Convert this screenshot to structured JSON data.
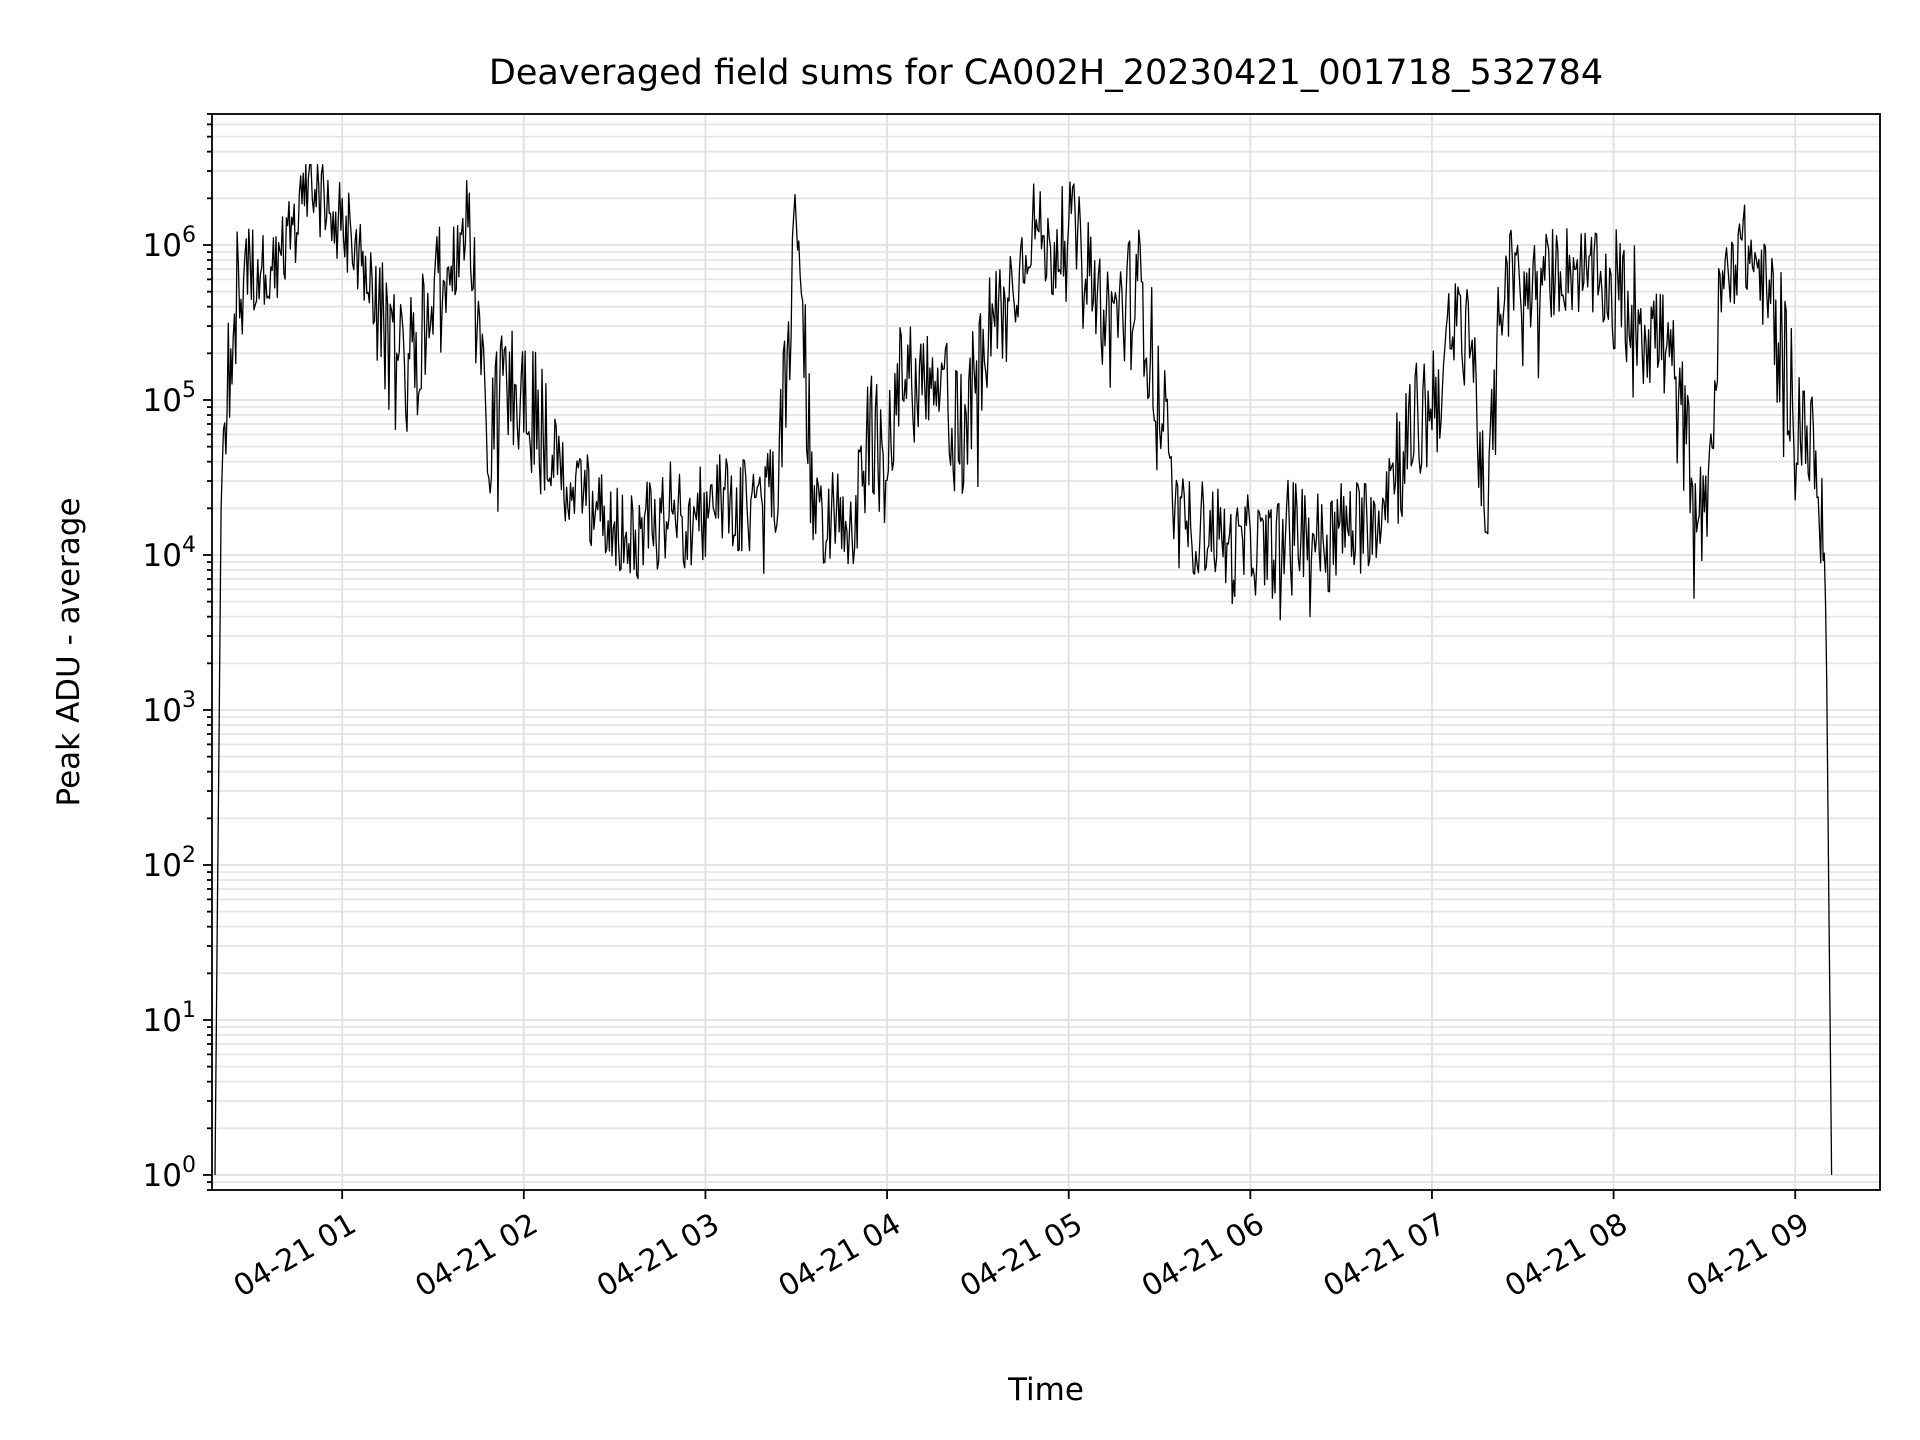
{
  "chart_data": {
    "type": "line",
    "title": "Deaveraged field sums for CA002H_20230421_001718_532784",
    "xlabel": "Time",
    "ylabel": "Peak ADU - average",
    "yscale": "log",
    "ylim": [
      0.8,
      7000000
    ],
    "xlim": [
      "2023-04-21 00:17",
      "2023-04-21 09:28"
    ],
    "grid": "major and minor, light gray",
    "x_ticks": [
      "04-21 01",
      "04-21 02",
      "04-21 03",
      "04-21 04",
      "04-21 05",
      "04-21 06",
      "04-21 07",
      "04-21 08",
      "04-21 09"
    ],
    "y_ticks": [
      {
        "base": "10",
        "exp": "0"
      },
      {
        "base": "10",
        "exp": "1"
      },
      {
        "base": "10",
        "exp": "2"
      },
      {
        "base": "10",
        "exp": "3"
      },
      {
        "base": "10",
        "exp": "4"
      },
      {
        "base": "10",
        "exp": "5"
      },
      {
        "base": "10",
        "exp": "6"
      }
    ],
    "series": [
      {
        "color": "#000000",
        "x": [
          "2023-04-21 00:18",
          "2023-04-21 00:20",
          "2023-04-21 00:24",
          "2023-04-21 00:30",
          "2023-04-21 00:36",
          "2023-04-21 00:42",
          "2023-04-21 00:48",
          "2023-04-21 00:54",
          "2023-04-21 01:00",
          "2023-04-21 01:06",
          "2023-04-21 01:12",
          "2023-04-21 01:18",
          "2023-04-21 01:24",
          "2023-04-21 01:30",
          "2023-04-21 01:36",
          "2023-04-21 01:42",
          "2023-04-21 01:48",
          "2023-04-21 01:54",
          "2023-04-21 02:00",
          "2023-04-21 02:06",
          "2023-04-21 02:12",
          "2023-04-21 02:18",
          "2023-04-21 02:24",
          "2023-04-21 02:30",
          "2023-04-21 02:36",
          "2023-04-21 02:42",
          "2023-04-21 02:48",
          "2023-04-21 02:54",
          "2023-04-21 03:00",
          "2023-04-21 03:06",
          "2023-04-21 03:12",
          "2023-04-21 03:18",
          "2023-04-21 03:24",
          "2023-04-21 03:30",
          "2023-04-21 03:36",
          "2023-04-21 03:42",
          "2023-04-21 03:48",
          "2023-04-21 03:54",
          "2023-04-21 04:00",
          "2023-04-21 04:06",
          "2023-04-21 04:12",
          "2023-04-21 04:18",
          "2023-04-21 04:24",
          "2023-04-21 04:30",
          "2023-04-21 04:36",
          "2023-04-21 04:42",
          "2023-04-21 04:48",
          "2023-04-21 04:54",
          "2023-04-21 05:00",
          "2023-04-21 05:06",
          "2023-04-21 05:12",
          "2023-04-21 05:18",
          "2023-04-21 05:24",
          "2023-04-21 05:30",
          "2023-04-21 05:36",
          "2023-04-21 05:42",
          "2023-04-21 05:48",
          "2023-04-21 05:54",
          "2023-04-21 06:00",
          "2023-04-21 06:06",
          "2023-04-21 06:12",
          "2023-04-21 06:18",
          "2023-04-21 06:24",
          "2023-04-21 06:30",
          "2023-04-21 06:36",
          "2023-04-21 06:42",
          "2023-04-21 06:48",
          "2023-04-21 06:54",
          "2023-04-21 07:00",
          "2023-04-21 07:06",
          "2023-04-21 07:12",
          "2023-04-21 07:18",
          "2023-04-21 07:24",
          "2023-04-21 07:30",
          "2023-04-21 07:36",
          "2023-04-21 07:42",
          "2023-04-21 07:48",
          "2023-04-21 07:54",
          "2023-04-21 08:00",
          "2023-04-21 08:06",
          "2023-04-21 08:12",
          "2023-04-21 08:18",
          "2023-04-21 08:24",
          "2023-04-21 08:30",
          "2023-04-21 08:36",
          "2023-04-21 08:42",
          "2023-04-21 08:48",
          "2023-04-21 08:54",
          "2023-04-21 09:00",
          "2023-04-21 09:06",
          "2023-04-21 09:10",
          "2023-04-21 09:12"
        ],
        "y": [
          1,
          20000,
          400000,
          700000,
          600000,
          1000000,
          2500000,
          1800000,
          1500000,
          800000,
          400000,
          150000,
          200000,
          400000,
          600000,
          1500000,
          60000,
          150000,
          120000,
          60000,
          30000,
          25000,
          20000,
          15000,
          12000,
          15000,
          20000,
          15000,
          20000,
          25000,
          20000,
          25000,
          30000,
          1500000,
          15000,
          20000,
          15000,
          50000,
          80000,
          120000,
          150000,
          100000,
          60000,
          150000,
          300000,
          500000,
          1500000,
          800000,
          1500000,
          800000,
          300000,
          400000,
          500000,
          100000,
          15000,
          15000,
          15000,
          10000,
          12000,
          10000,
          15000,
          15000,
          12000,
          15000,
          15000,
          20000,
          40000,
          60000,
          100000,
          200000,
          400000,
          15000,
          800000,
          500000,
          600000,
          700000,
          700000,
          600000,
          500000,
          400000,
          300000,
          200000,
          50000,
          15000,
          600000,
          1000000,
          700000,
          300000,
          100000,
          40000,
          10000,
          1
        ]
      }
    ]
  }
}
